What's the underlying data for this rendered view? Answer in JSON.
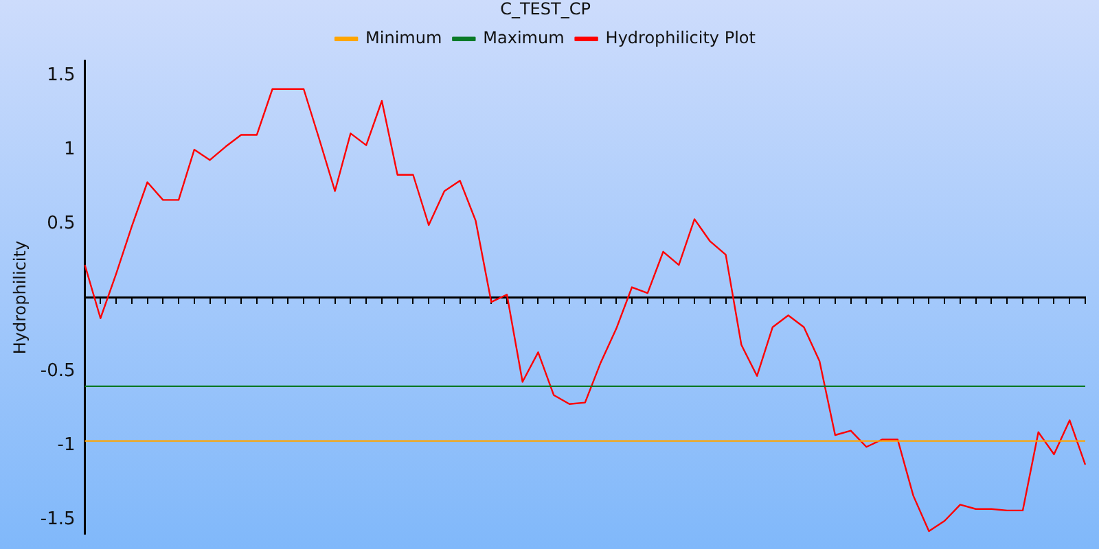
{
  "chart_data": {
    "type": "line",
    "title": "C_TEST_CP",
    "ylabel": "Hydrophilicity",
    "categories": [
      null,
      null,
      null,
      null,
      null,
      null,
      null,
      null,
      null,
      null,
      null,
      null,
      null,
      null,
      null,
      null,
      null,
      null,
      null,
      null,
      null,
      null,
      null,
      null,
      null,
      null,
      null,
      null,
      null,
      null,
      null,
      null,
      null,
      null,
      null,
      null,
      null,
      null,
      null,
      null,
      null,
      null,
      null,
      null,
      null,
      null,
      null,
      null,
      null,
      null,
      null,
      null,
      null,
      null,
      null,
      null,
      null,
      null,
      null,
      null,
      null,
      null,
      null,
      null,
      null
    ],
    "series": [
      {
        "name": "Minimum",
        "color": "#ffa500",
        "values": [
          -0.97,
          -0.97,
          -0.97,
          -0.97,
          -0.97,
          -0.97,
          -0.97,
          -0.97,
          -0.97,
          -0.97,
          -0.97,
          -0.97,
          -0.97,
          -0.97,
          -0.97,
          -0.97,
          -0.97,
          -0.97,
          -0.97,
          -0.97,
          -0.97,
          -0.97,
          -0.97,
          -0.97,
          -0.97,
          -0.97,
          -0.97,
          -0.97,
          -0.97,
          -0.97,
          -0.97,
          -0.97,
          -0.97,
          -0.97,
          -0.97,
          -0.97,
          -0.97,
          -0.97,
          -0.97,
          -0.97,
          -0.97,
          -0.97,
          -0.97,
          -0.97,
          -0.97,
          -0.97,
          -0.97,
          -0.97,
          -0.97,
          -0.97,
          -0.97,
          -0.97,
          -0.97,
          -0.97,
          -0.97,
          -0.97,
          -0.97,
          -0.97,
          -0.97,
          -0.97,
          -0.97,
          -0.97,
          -0.97,
          -0.97,
          -0.97
        ]
      },
      {
        "name": "Maximum",
        "color": "#0a7a28",
        "values": [
          -0.6,
          -0.6,
          -0.6,
          -0.6,
          -0.6,
          -0.6,
          -0.6,
          -0.6,
          -0.6,
          -0.6,
          -0.6,
          -0.6,
          -0.6,
          -0.6,
          -0.6,
          -0.6,
          -0.6,
          -0.6,
          -0.6,
          -0.6,
          -0.6,
          -0.6,
          -0.6,
          -0.6,
          -0.6,
          -0.6,
          -0.6,
          -0.6,
          -0.6,
          -0.6,
          -0.6,
          -0.6,
          -0.6,
          -0.6,
          -0.6,
          -0.6,
          -0.6,
          -0.6,
          -0.6,
          -0.6,
          -0.6,
          -0.6,
          -0.6,
          -0.6,
          -0.6,
          -0.6,
          -0.6,
          -0.6,
          -0.6,
          -0.6,
          -0.6,
          -0.6,
          -0.6,
          -0.6,
          -0.6,
          -0.6,
          -0.6,
          -0.6,
          -0.6,
          -0.6,
          -0.6,
          -0.6,
          -0.6,
          -0.6,
          -0.6
        ]
      },
      {
        "name": "Hydrophilicity Plot",
        "color": "#ff0000",
        "values": [
          0.22,
          -0.14,
          0.16,
          0.48,
          0.78,
          0.66,
          0.66,
          1.0,
          0.93,
          1.02,
          1.1,
          1.1,
          1.41,
          1.41,
          1.41,
          1.07,
          0.72,
          1.11,
          1.03,
          1.33,
          0.83,
          0.83,
          0.49,
          0.72,
          0.79,
          0.52,
          -0.03,
          0.02,
          -0.57,
          -0.37,
          -0.66,
          -0.72,
          -0.71,
          -0.44,
          -0.21,
          0.07,
          0.03,
          0.31,
          0.22,
          0.53,
          0.38,
          0.29,
          -0.32,
          -0.53,
          -0.2,
          -0.12,
          -0.2,
          -0.43,
          -0.93,
          -0.9,
          -1.01,
          -0.96,
          -0.96,
          -1.34,
          -1.58,
          -1.51,
          -1.4,
          -1.43,
          -1.43,
          -1.44,
          -1.44,
          -0.91,
          -1.06,
          -0.83,
          -1.13
        ]
      }
    ],
    "ylim": [
      -1.6,
      1.6
    ],
    "yticks": [
      -1.5,
      -1,
      -0.5,
      0.5,
      1,
      1.5
    ],
    "tick_labels": "y",
    "grid": false,
    "legend": "top",
    "marker": "none",
    "line_style": "solid"
  }
}
